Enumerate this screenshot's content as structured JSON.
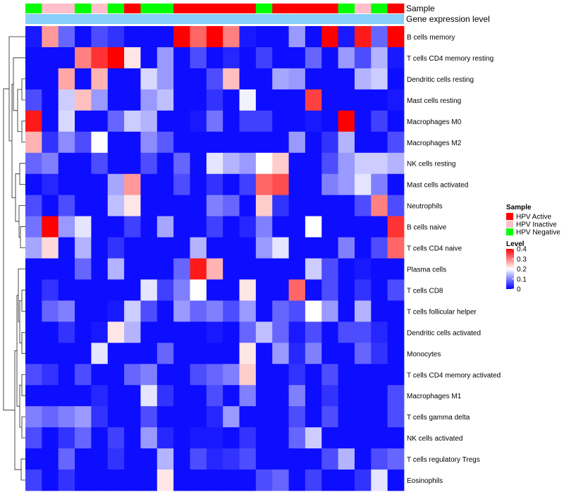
{
  "chart_data": {
    "type": "heatmap",
    "title": "",
    "annotation_tracks": [
      {
        "name": "Sample",
        "values": [
          "HPV Negative",
          "HPV Inactive",
          "HPV Inactive",
          "HPV Negative",
          "HPV Inactive",
          "HPV Negative",
          "HPV Active",
          "HPV Negative",
          "HPV Negative",
          "HPV Active",
          "HPV Active",
          "HPV Active",
          "HPV Active",
          "HPV Active",
          "HPV Negative",
          "HPV Active",
          "HPV Active",
          "HPV Active",
          "HPV Active",
          "HPV Negative",
          "HPV Inactive",
          "HPV Negative",
          "HPV Active"
        ]
      },
      {
        "name": "Gene expression level",
        "values": []
      }
    ],
    "rows": [
      "B cells memory",
      "T cells CD4 memory resting",
      "Dendritic cells resting",
      "Mast cells resting",
      "Macrophages M0",
      "Macrophages M2",
      "NK cells resting",
      "Mast cells activated",
      "Neutrophils",
      "B cells naive",
      "T cells CD4 naive",
      "Plasma cells",
      "T cells CD8",
      "T cells follicular helper",
      "Dendritic cells activated",
      "Monocytes",
      "T cells CD4 memory activated",
      "Macrophages M1",
      "T cells gamma delta",
      "NK cells activated",
      "T cells regulatory  Tregs",
      "Eosinophils"
    ],
    "values": [
      [
        0.02,
        0.28,
        0.08,
        0.01,
        0.06,
        0.04,
        0.01,
        0.01,
        0.01,
        0.4,
        0.32,
        0.4,
        0.3,
        0.02,
        0.01,
        0.01,
        0.12,
        0.01,
        0.4,
        0.02,
        0.38,
        0.08,
        0.4
      ],
      [
        0.01,
        0.01,
        0.01,
        0.3,
        0.36,
        0.4,
        0.22,
        0.01,
        0.12,
        0.01,
        0.06,
        0.01,
        0.03,
        0.01,
        0.05,
        0.01,
        0.01,
        0.08,
        0.01,
        0.12,
        0.06,
        0.14,
        0.02
      ],
      [
        0.01,
        0.01,
        0.27,
        0.01,
        0.26,
        0.01,
        0.01,
        0.17,
        0.12,
        0.01,
        0.01,
        0.06,
        0.25,
        0.01,
        0.01,
        0.13,
        0.12,
        0.01,
        0.01,
        0.01,
        0.14,
        0.16,
        0.01
      ],
      [
        0.06,
        0.01,
        0.16,
        0.25,
        0.12,
        0.01,
        0.01,
        0.12,
        0.15,
        0.01,
        0.01,
        0.04,
        0.01,
        0.19,
        0.01,
        0.01,
        0.01,
        0.35,
        0.01,
        0.01,
        0.01,
        0.01,
        0.02
      ],
      [
        0.38,
        0.01,
        0.17,
        0.01,
        0.01,
        0.08,
        0.16,
        0.14,
        0.01,
        0.01,
        0.02,
        0.09,
        0.01,
        0.05,
        0.05,
        0.01,
        0.01,
        0.02,
        0.01,
        0.4,
        0.01,
        0.05,
        0.01
      ],
      [
        0.26,
        0.04,
        0.11,
        0.06,
        0.2,
        0.01,
        0.01,
        0.11,
        0.07,
        0.01,
        0.01,
        0.01,
        0.01,
        0.01,
        0.01,
        0.01,
        0.12,
        0.01,
        0.04,
        0.14,
        0.01,
        0.01,
        0.06
      ],
      [
        0.08,
        0.1,
        0.01,
        0.01,
        0.06,
        0.01,
        0.01,
        0.06,
        0.01,
        0.08,
        0.01,
        0.18,
        0.14,
        0.12,
        0.2,
        0.24,
        0.01,
        0.01,
        0.06,
        0.12,
        0.16,
        0.16,
        0.14
      ],
      [
        0.01,
        0.03,
        0.01,
        0.01,
        0.01,
        0.13,
        0.28,
        0.01,
        0.01,
        0.06,
        0.01,
        0.04,
        0.01,
        0.05,
        0.32,
        0.34,
        0.01,
        0.01,
        0.1,
        0.12,
        0.18,
        0.1,
        0.01
      ],
      [
        0.06,
        0.01,
        0.06,
        0.01,
        0.01,
        0.15,
        0.22,
        0.01,
        0.01,
        0.01,
        0.01,
        0.1,
        0.08,
        0.01,
        0.24,
        0.04,
        0.01,
        0.01,
        0.01,
        0.01,
        0.06,
        0.3,
        0.06
      ],
      [
        0.09,
        0.4,
        0.12,
        0.18,
        0.01,
        0.01,
        0.05,
        0.01,
        0.13,
        0.01,
        0.01,
        0.05,
        0.01,
        0.03,
        0.1,
        0.01,
        0.01,
        0.2,
        0.01,
        0.01,
        0.01,
        0.01,
        0.36
      ],
      [
        0.13,
        0.23,
        0.01,
        0.14,
        0.01,
        0.04,
        0.01,
        0.01,
        0.01,
        0.01,
        0.14,
        0.01,
        0.01,
        0.01,
        0.12,
        0.18,
        0.01,
        0.01,
        0.01,
        0.1,
        0.01,
        0.06,
        0.32
      ],
      [
        0.01,
        0.01,
        0.01,
        0.08,
        0.01,
        0.14,
        0.01,
        0.01,
        0.01,
        0.08,
        0.38,
        0.26,
        0.01,
        0.01,
        0.01,
        0.01,
        0.01,
        0.16,
        0.06,
        0.01,
        0.02,
        0.01,
        0.01
      ],
      [
        0.01,
        0.04,
        0.01,
        0.01,
        0.01,
        0.01,
        0.01,
        0.18,
        0.05,
        0.1,
        0.2,
        0.01,
        0.01,
        0.22,
        0.01,
        0.01,
        0.32,
        0.01,
        0.06,
        0.01,
        0.04,
        0.01,
        0.06
      ],
      [
        0.01,
        0.08,
        0.1,
        0.01,
        0.01,
        0.02,
        0.16,
        0.06,
        0.01,
        0.12,
        0.08,
        0.1,
        0.06,
        0.12,
        0.01,
        0.08,
        0.06,
        0.2,
        0.12,
        0.01,
        0.14,
        0.01,
        0.01
      ],
      [
        0.01,
        0.01,
        0.04,
        0.01,
        0.02,
        0.22,
        0.14,
        0.01,
        0.01,
        0.01,
        0.01,
        0.02,
        0.01,
        0.08,
        0.15,
        0.08,
        0.02,
        0.06,
        0.01,
        0.06,
        0.06,
        0.03,
        0.01
      ],
      [
        0.01,
        0.01,
        0.01,
        0.01,
        0.18,
        0.01,
        0.01,
        0.01,
        0.08,
        0.01,
        0.01,
        0.01,
        0.01,
        0.22,
        0.01,
        0.12,
        0.03,
        0.1,
        0.01,
        0.01,
        0.08,
        0.04,
        0.01
      ],
      [
        0.06,
        0.04,
        0.01,
        0.06,
        0.01,
        0.01,
        0.08,
        0.1,
        0.01,
        0.01,
        0.06,
        0.08,
        0.1,
        0.24,
        0.01,
        0.01,
        0.04,
        0.01,
        0.06,
        0.01,
        0.01,
        0.01,
        0.01
      ],
      [
        0.01,
        0.01,
        0.01,
        0.01,
        0.03,
        0.01,
        0.01,
        0.18,
        0.04,
        0.01,
        0.01,
        0.06,
        0.01,
        0.1,
        0.01,
        0.01,
        0.1,
        0.01,
        0.04,
        0.01,
        0.01,
        0.01,
        0.06
      ],
      [
        0.1,
        0.08,
        0.1,
        0.12,
        0.04,
        0.01,
        0.01,
        0.06,
        0.01,
        0.01,
        0.01,
        0.03,
        0.12,
        0.01,
        0.01,
        0.01,
        0.06,
        0.01,
        0.06,
        0.01,
        0.01,
        0.01,
        0.06
      ],
      [
        0.06,
        0.01,
        0.04,
        0.08,
        0.01,
        0.05,
        0.01,
        0.12,
        0.03,
        0.01,
        0.02,
        0.02,
        0.01,
        0.04,
        0.01,
        0.01,
        0.08,
        0.16,
        0.01,
        0.01,
        0.01,
        0.01,
        0.01
      ],
      [
        0.01,
        0.01,
        0.08,
        0.01,
        0.01,
        0.04,
        0.01,
        0.01,
        0.14,
        0.01,
        0.06,
        0.03,
        0.04,
        0.06,
        0.01,
        0.01,
        0.01,
        0.01,
        0.06,
        0.14,
        0.01,
        0.06,
        0.08
      ],
      [
        0.05,
        0.01,
        0.04,
        0.01,
        0.01,
        0.01,
        0.01,
        0.01,
        0.22,
        0.01,
        0.01,
        0.01,
        0.01,
        0.01,
        0.06,
        0.08,
        0.01,
        0.05,
        0.01,
        0.01,
        0.04,
        0.18,
        0.01
      ]
    ],
    "legend_sample": {
      "title": "Sample",
      "entries": [
        {
          "label": "HPV Active",
          "color": "#ff0000"
        },
        {
          "label": "HPV Inactive",
          "color": "#ffc0cb"
        },
        {
          "label": "HPV Negative",
          "color": "#00ff00"
        }
      ]
    },
    "legend_level": {
      "title": "Level",
      "ticks": [
        "0.4",
        "0.3",
        "0.2",
        "0.1",
        "0"
      ],
      "range": [
        0,
        0.4
      ],
      "colors": [
        "#0000ff",
        "#ffffff",
        "#ff0000"
      ]
    },
    "expression_track_color": "#87cefa"
  }
}
